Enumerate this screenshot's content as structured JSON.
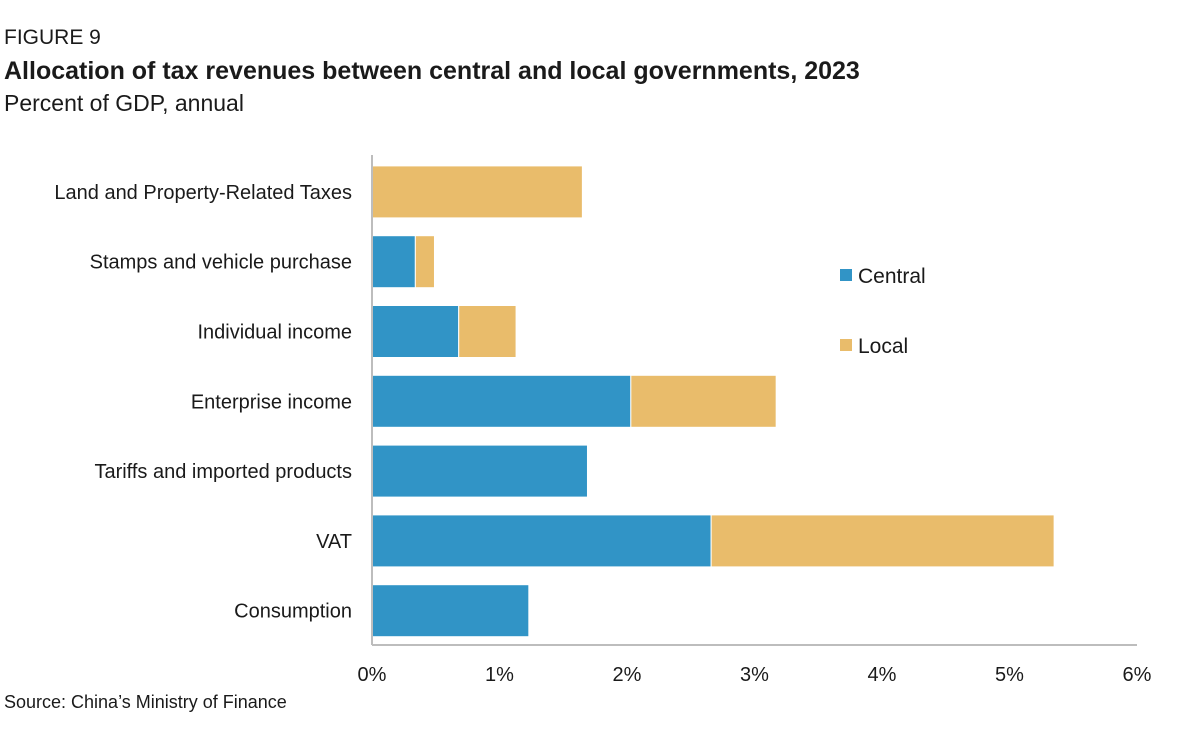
{
  "figure_label": "FIGURE 9",
  "title": "Allocation of tax revenues between central and local governments, 2023",
  "subtitle": "Percent of GDP, annual",
  "source": "Source: China’s Ministry of Finance",
  "chart_data": {
    "type": "bar",
    "orientation": "horizontal",
    "stacked": true,
    "categories": [
      "Land and Property-Related Taxes",
      "Stamps and vehicle purchase",
      "Individual income",
      "Enterprise income",
      "Tariffs and imported products",
      "VAT",
      "Consumption"
    ],
    "series": [
      {
        "name": "Central",
        "color": "#3194c6",
        "values": [
          0,
          0.34,
          0.68,
          2.03,
          1.69,
          2.66,
          1.23
        ]
      },
      {
        "name": "Local",
        "color": "#e9bc6b",
        "values": [
          1.65,
          0.15,
          0.45,
          1.14,
          0,
          2.69,
          0
        ]
      }
    ],
    "x_ticks": [
      "0%",
      "1%",
      "2%",
      "3%",
      "4%",
      "5%",
      "6%"
    ],
    "xlim": [
      0,
      6
    ],
    "grid": false,
    "legend_position": "right"
  }
}
